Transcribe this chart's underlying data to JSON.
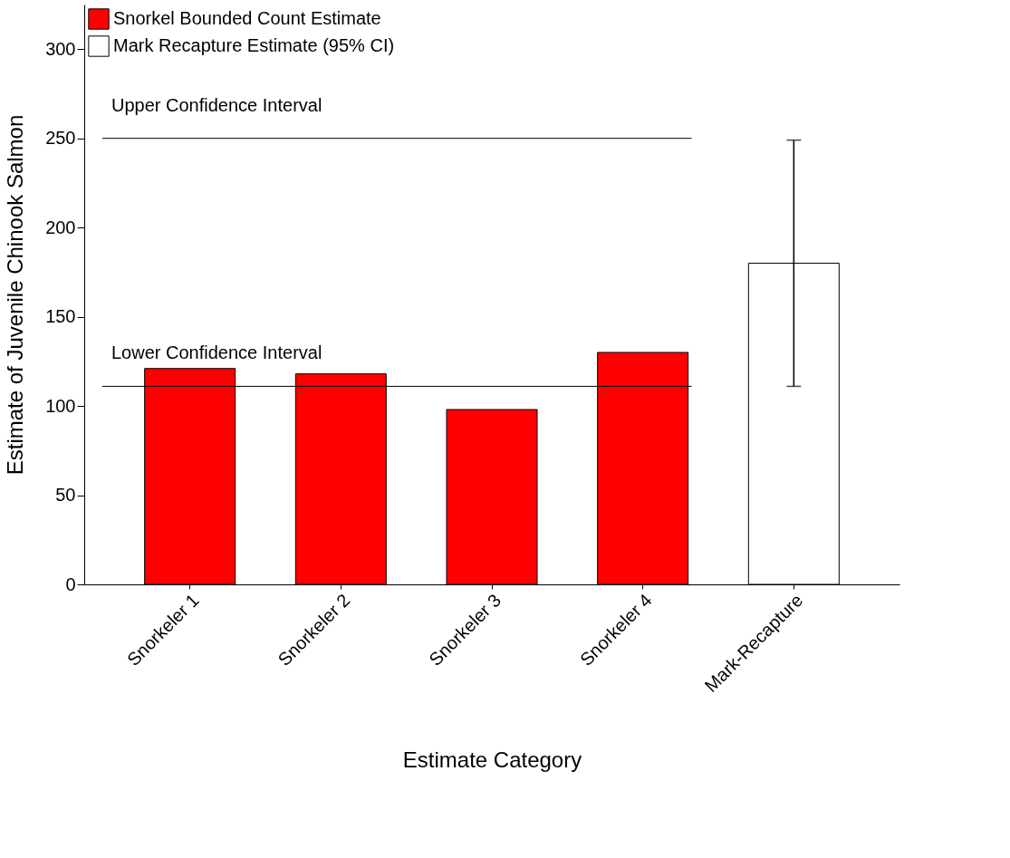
{
  "chart_data": {
    "type": "bar",
    "xlabel": "Estimate Category",
    "ylabel": "Estimate of Juvenile Chinook Salmon",
    "categories": [
      "Snorkeler 1",
      "Snorkeler 2",
      "Snorkeler 3",
      "Snorkeler 4",
      "Mark-Recapture"
    ],
    "series": [
      {
        "name": "Snorkel Bounded Count Estimate",
        "color": "#ff0000",
        "values": [
          121,
          118,
          98,
          130,
          null
        ]
      },
      {
        "name": "Mark Recapture Estimate (95% CI)",
        "color": "#ffffff",
        "values": [
          null,
          null,
          null,
          null,
          180
        ],
        "errors": [
          null,
          null,
          null,
          null,
          [
            111,
            249
          ]
        ]
      }
    ],
    "ylim": [
      0,
      325
    ],
    "yticks": [
      0,
      50,
      100,
      150,
      200,
      250,
      300
    ],
    "grid": false,
    "legend": "top left",
    "ref_lines": [
      {
        "axis": "y",
        "value": 250,
        "label": "Upper Confidence Interval"
      },
      {
        "axis": "y",
        "value": 111,
        "label": "Lower Confidence Interval"
      }
    ]
  }
}
